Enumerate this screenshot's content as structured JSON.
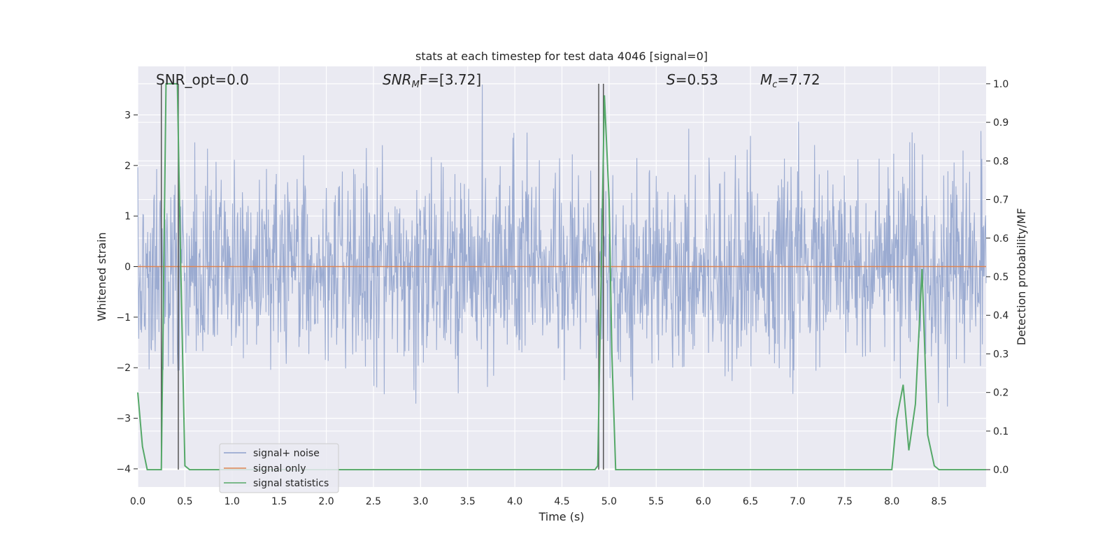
{
  "chart_data": {
    "type": "line",
    "title": "stats at each timestep for test data 4046 [signal=0]",
    "xlabel": "Time (s)",
    "ylabel": "Whitened strain",
    "ylabel_right": "Detection probability/MF",
    "xlim": [
      0.0,
      9.0
    ],
    "ylim": [
      -4.36,
      3.96
    ],
    "ylim_right": [
      -0.045,
      1.045
    ],
    "x_ticks": [
      "0.0",
      "0.5",
      "1.0",
      "1.5",
      "2.0",
      "2.5",
      "3.0",
      "3.5",
      "4.0",
      "4.5",
      "5.0",
      "5.5",
      "6.0",
      "6.5",
      "7.0",
      "7.5",
      "8.0",
      "8.5"
    ],
    "y_ticks": [
      "3",
      "2",
      "1",
      "0",
      "−1",
      "−2",
      "−3",
      "−4"
    ],
    "y_ticks_right": [
      "1.0",
      "0.9",
      "0.8",
      "0.7",
      "0.6",
      "0.5",
      "0.4",
      "0.3",
      "0.2",
      "0.1",
      "0.0"
    ],
    "grid": true,
    "legend_position": "bottom-left",
    "annotations": {
      "snr_opt": "SNR_opt=0.0",
      "snr_mf_label": "SNR",
      "snr_mf_sub": "M",
      "snr_mf_rest": "F=[3.72]",
      "s_label": "S",
      "s_rest": "=0.53",
      "mc_label": "M",
      "mc_sub": "c",
      "mc_rest": "=7.72"
    },
    "series": [
      {
        "name": "signal+ noise",
        "color": "#8da0cb",
        "kind": "noise",
        "envelope": [
          -3.6,
          3.6
        ]
      },
      {
        "name": "signal only",
        "color": "#dd8452",
        "values_const": 0.0
      },
      {
        "name": "signal statistics",
        "color": "#55a868",
        "axis": "right",
        "x": [
          0.0,
          0.05,
          0.1,
          0.25,
          0.3,
          0.42,
          0.45,
          0.5,
          0.55,
          4.85,
          4.88,
          4.95,
          5.0,
          5.03,
          5.07,
          8.0,
          8.05,
          8.12,
          8.18,
          8.25,
          8.32,
          8.38,
          8.45,
          8.5,
          9.0
        ],
        "y": [
          0.2,
          0.06,
          0.0,
          0.0,
          1.0,
          1.0,
          0.6,
          0.01,
          0.0,
          0.0,
          0.01,
          0.97,
          0.7,
          0.3,
          0.0,
          0.0,
          0.13,
          0.22,
          0.05,
          0.17,
          0.52,
          0.09,
          0.01,
          0.0,
          0.0
        ]
      }
    ],
    "vlines": [
      0.25,
      0.43,
      4.89,
      4.94
    ]
  }
}
